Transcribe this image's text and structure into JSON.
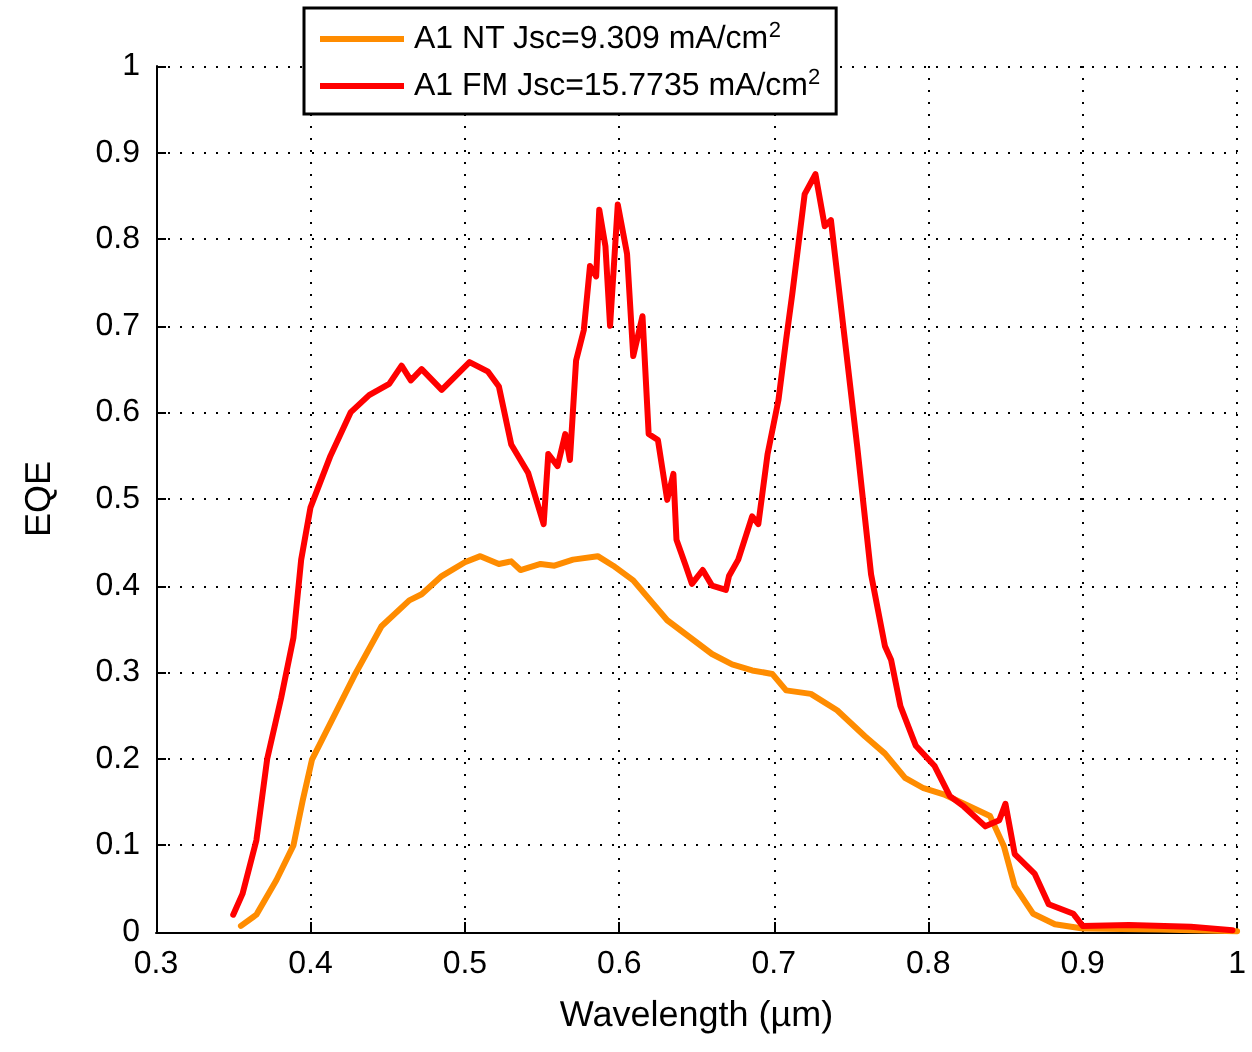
{
  "chart_data": {
    "type": "line",
    "xlabel": "Wavelength (µm)",
    "ylabel": "EQE",
    "xlim": [
      0.3,
      1.0
    ],
    "xticks": [
      0.3,
      0.4,
      0.5,
      0.6,
      0.7,
      0.8,
      0.9,
      1
    ],
    "ylim": [
      0,
      1
    ],
    "yticks": [
      0,
      0.1,
      0.2,
      0.3,
      0.4,
      0.5,
      0.6,
      0.7,
      0.8,
      0.9,
      1
    ],
    "grid": true,
    "legend": "top",
    "marker": "none",
    "line_style": "solid",
    "series": [
      {
        "name": "A1 NT Jsc=9.309 mA/cm$^{2}$",
        "color": "#ff8c00",
        "x": [
          0.355,
          0.365,
          0.378,
          0.389,
          0.395,
          0.401,
          0.414,
          0.429,
          0.446,
          0.464,
          0.472,
          0.485,
          0.5,
          0.51,
          0.522,
          0.53,
          0.536,
          0.549,
          0.558,
          0.57,
          0.586,
          0.596,
          0.609,
          0.631,
          0.66,
          0.673,
          0.686,
          0.699,
          0.708,
          0.724,
          0.741,
          0.759,
          0.772,
          0.785,
          0.797,
          0.81,
          0.827,
          0.84,
          0.849,
          0.856,
          0.868,
          0.882,
          0.9,
          0.95,
          1.0
        ],
        "values": [
          0.007,
          0.02,
          0.06,
          0.1,
          0.152,
          0.199,
          0.245,
          0.298,
          0.353,
          0.383,
          0.39,
          0.411,
          0.427,
          0.434,
          0.425,
          0.428,
          0.418,
          0.425,
          0.423,
          0.43,
          0.434,
          0.423,
          0.406,
          0.36,
          0.321,
          0.309,
          0.302,
          0.298,
          0.279,
          0.275,
          0.256,
          0.226,
          0.206,
          0.178,
          0.166,
          0.159,
          0.145,
          0.134,
          0.099,
          0.053,
          0.021,
          0.009,
          0.004,
          0.003,
          0.001
        ]
      },
      {
        "name": "A1 FM Jsc=15.7735 mA/cm$^{2}$",
        "color": "#ff0000",
        "x": [
          0.35,
          0.356,
          0.365,
          0.372,
          0.381,
          0.389,
          0.394,
          0.4,
          0.413,
          0.426,
          0.438,
          0.451,
          0.459,
          0.465,
          0.472,
          0.485,
          0.503,
          0.515,
          0.522,
          0.53,
          0.541,
          0.551,
          0.554,
          0.56,
          0.565,
          0.568,
          0.572,
          0.577,
          0.581,
          0.585,
          0.587,
          0.591,
          0.594,
          0.599,
          0.605,
          0.609,
          0.615,
          0.619,
          0.625,
          0.631,
          0.635,
          0.637,
          0.643,
          0.647,
          0.654,
          0.66,
          0.669,
          0.671,
          0.677,
          0.686,
          0.69,
          0.696,
          0.703,
          0.708,
          0.712,
          0.72,
          0.727,
          0.733,
          0.737,
          0.746,
          0.754,
          0.763,
          0.772,
          0.776,
          0.782,
          0.792,
          0.804,
          0.814,
          0.823,
          0.837,
          0.846,
          0.85,
          0.856,
          0.869,
          0.878,
          0.894,
          0.9,
          0.93,
          0.97,
          0.997
        ],
        "values": [
          0.02,
          0.044,
          0.106,
          0.2,
          0.27,
          0.34,
          0.43,
          0.49,
          0.55,
          0.6,
          0.62,
          0.633,
          0.654,
          0.637,
          0.65,
          0.626,
          0.658,
          0.647,
          0.63,
          0.563,
          0.53,
          0.471,
          0.552,
          0.538,
          0.575,
          0.545,
          0.66,
          0.695,
          0.769,
          0.757,
          0.834,
          0.792,
          0.7,
          0.84,
          0.783,
          0.665,
          0.711,
          0.575,
          0.568,
          0.499,
          0.529,
          0.453,
          0.423,
          0.402,
          0.418,
          0.4,
          0.395,
          0.411,
          0.43,
          0.48,
          0.471,
          0.552,
          0.614,
          0.684,
          0.737,
          0.852,
          0.875,
          0.815,
          0.822,
          0.684,
          0.561,
          0.413,
          0.33,
          0.314,
          0.261,
          0.215,
          0.192,
          0.157,
          0.145,
          0.122,
          0.129,
          0.148,
          0.09,
          0.067,
          0.032,
          0.021,
          0.007,
          0.008,
          0.006,
          0.002
        ]
      }
    ]
  }
}
